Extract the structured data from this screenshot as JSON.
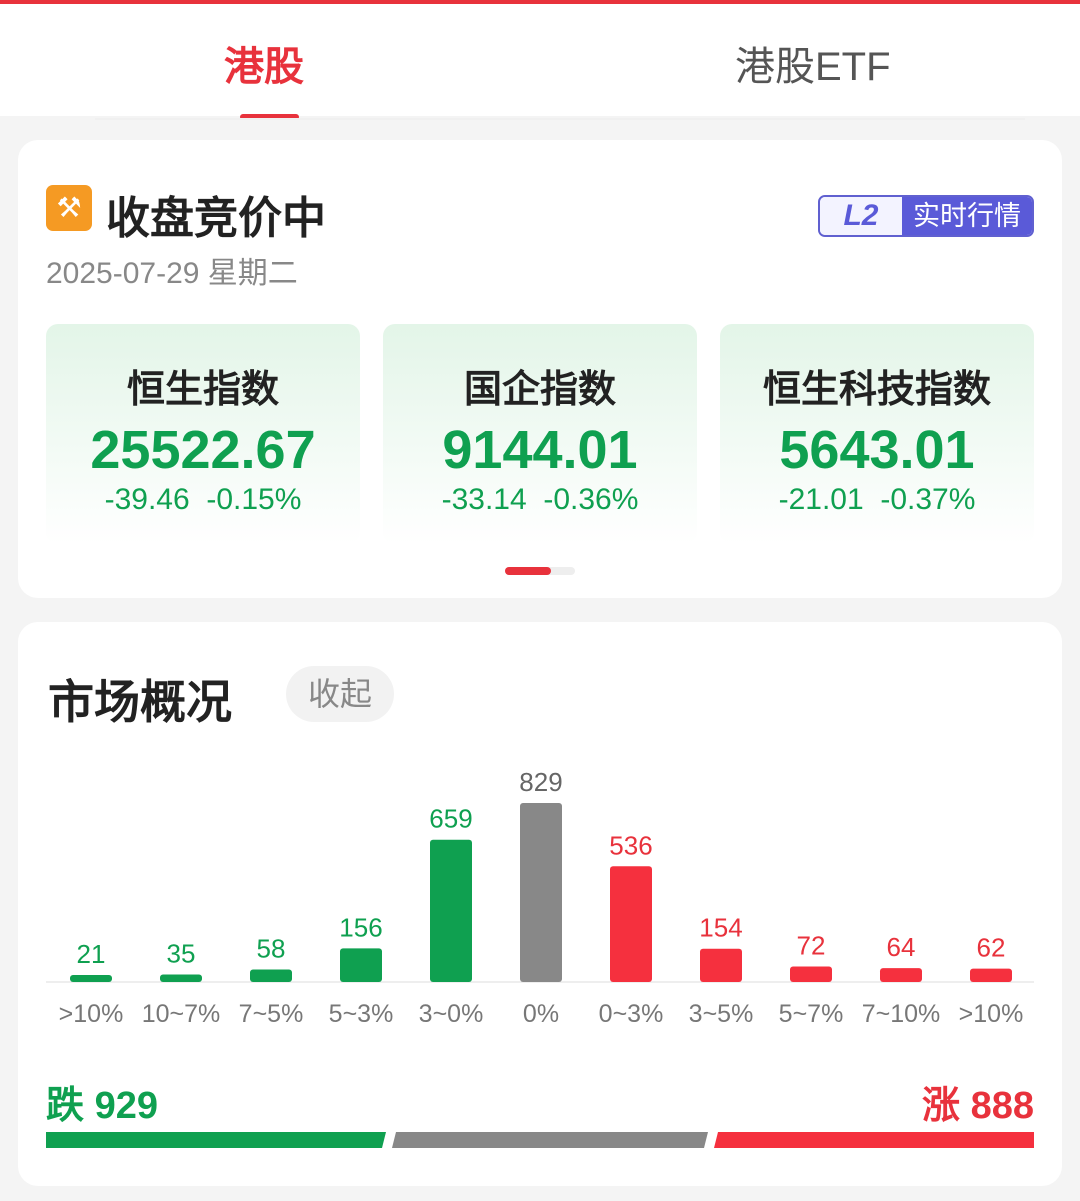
{
  "tabs": [
    {
      "label": "港股",
      "active": true
    },
    {
      "label": "港股ETF",
      "active": false
    }
  ],
  "status": {
    "icon": "gavel-icon",
    "title": "收盘竞价中",
    "date": "2025-07-29 星期二",
    "badge_l2": "L2",
    "badge_text": "实时行情"
  },
  "indices": [
    {
      "name": "恒生指数",
      "value": "25522.67",
      "change": "-39.46",
      "pct": "-0.15%"
    },
    {
      "name": "国企指数",
      "value": "9144.01",
      "change": "-33.14",
      "pct": "-0.36%"
    },
    {
      "name": "恒生科技指数",
      "value": "5643.01",
      "change": "-21.01",
      "pct": "-0.37%"
    }
  ],
  "market": {
    "title": "市场概况",
    "collapse": "收起",
    "fall_label": "跌",
    "fall_count": "929",
    "rise_label": "涨",
    "rise_count": "888"
  },
  "colors": {
    "up": "#e8323c",
    "down": "#0fa050",
    "flat": "#888888",
    "accent": "#e8323c"
  },
  "chart_data": {
    "type": "bar",
    "categories": [
      ">10%",
      "10~7%",
      "7~5%",
      "5~3%",
      "3~0%",
      "0%",
      "0~3%",
      "3~5%",
      "5~7%",
      "7~10%",
      ">10%"
    ],
    "values": [
      21,
      35,
      58,
      156,
      659,
      829,
      536,
      154,
      72,
      64,
      62
    ],
    "bar_colors": [
      "down",
      "down",
      "down",
      "down",
      "down",
      "flat",
      "up",
      "up",
      "up",
      "up",
      "up"
    ]
  }
}
